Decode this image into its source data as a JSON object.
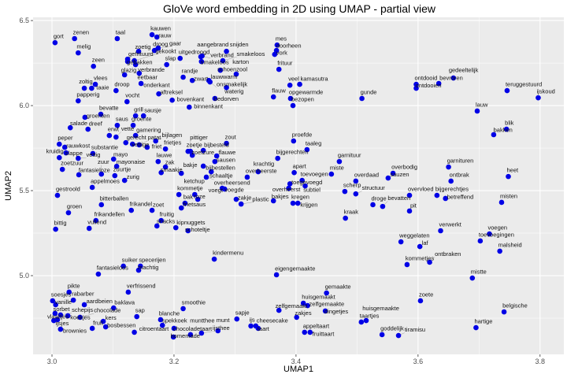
{
  "chart_data": {
    "type": "scatter",
    "title": "GloVe word embedding in 2D using UMAP - partial view",
    "xlabel": "UMAP1",
    "ylabel": "UMAP2",
    "xlim": [
      2.969,
      3.839
    ],
    "ylim": [
      4.537,
      6.519
    ],
    "x_ticks": [
      3.0,
      3.2,
      3.4,
      3.6,
      3.8
    ],
    "x_tick_labels": [
      "3.0",
      "3.2",
      "3.4",
      "3.6",
      "3.8"
    ],
    "y_ticks": [
      5.0,
      5.5,
      6.0,
      6.5
    ],
    "y_tick_labels": [
      "5.0",
      "5.5",
      "6.0",
      "6.5"
    ],
    "grid": true,
    "point_color": "#0000e6",
    "background": "#ebebeb",
    "points": [
      [
        "gort",
        3.005,
        6.37
      ],
      [
        "zenen",
        3.037,
        6.394
      ],
      [
        "taal",
        3.107,
        6.394
      ],
      [
        "kauwen",
        3.164,
        6.417
      ],
      [
        "rauw",
        3.172,
        6.403
      ],
      [
        "melig",
        3.043,
        6.31
      ],
      [
        "zeen",
        3.068,
        6.231
      ],
      [
        "droog",
        3.168,
        6.324
      ],
      [
        "gaar",
        3.174,
        6.338
      ],
      [
        "zoetig",
        3.142,
        6.319
      ],
      [
        "gefrituurd",
        3.124,
        6.273
      ],
      [
        "gebakken",
        3.124,
        6.259
      ],
      [
        "gekookt",
        3.135,
        6.264
      ],
      [
        "verbrande",
        3.137,
        6.241
      ],
      [
        "eetbaar",
        3.143,
        6.19
      ],
      [
        "glazig",
        3.119,
        6.181
      ],
      [
        "onderkant",
        3.146,
        6.13
      ],
      [
        "vlees",
        3.071,
        6.125
      ],
      [
        "zoltig",
        3.053,
        6.102
      ],
      [
        "taaie",
        3.065,
        6.102
      ],
      [
        "droop",
        3.105,
        6.088
      ],
      [
        "papperig",
        3.043,
        6.028
      ],
      [
        "vocht",
        3.123,
        6.023
      ],
      [
        "uitgedroogd",
        3.21,
        6.278
      ],
      [
        "slap",
        3.188,
        6.241
      ],
      [
        "randje",
        3.215,
        6.167
      ],
      [
        "zwart",
        3.23,
        6.148
      ],
      [
        "aangebrand",
        3.244,
        6.287
      ],
      [
        "verbrand",
        3.246,
        6.292
      ],
      [
        "smakeloos",
        3.245,
        6.259
      ],
      [
        "smakeloos",
        3.28,
        6.264
      ],
      [
        "snijden",
        3.286,
        6.319
      ],
      [
        "schoenzool",
        3.276,
        6.208
      ],
      [
        "karton",
        3.302,
        6.185
      ],
      [
        "lauwwarm",
        3.257,
        6.148
      ],
      [
        "onsmakelijk",
        3.259,
        6.139
      ],
      [
        "waterig",
        3.286,
        6.106
      ],
      [
        "aftreksel",
        3.175,
        6.069
      ],
      [
        "bovenkant",
        3.197,
        6.032
      ],
      [
        "bedorven",
        3.267,
        6.042
      ],
      [
        "binnenkant",
        3.225,
        5.991
      ],
      [
        "mes",
        3.369,
        6.356
      ],
      [
        "doorheen",
        3.368,
        6.324
      ],
      [
        "vork",
        3.365,
        6.301
      ],
      [
        "frituur",
        3.372,
        6.213
      ],
      [
        "veel",
        3.39,
        6.12
      ],
      [
        "kamasutra",
        3.406,
        6.125
      ],
      [
        "flauw",
        3.363,
        6.051
      ],
      [
        "opgewarmde",
        3.391,
        6.042
      ],
      [
        "bezopen",
        3.395,
        6.0
      ],
      [
        "gunde",
        3.508,
        6.042
      ],
      [
        "ontdooid",
        3.597,
        6.125
      ],
      [
        "ontdooien",
        3.597,
        6.102
      ],
      [
        "bevroren",
        3.634,
        6.13
      ],
      [
        "gedeeltelijk",
        3.658,
        6.162
      ],
      [
        "teruggestuurd",
        3.746,
        6.088
      ],
      [
        "ijskoud",
        3.797,
        6.046
      ],
      [
        "lauw",
        3.697,
        5.968
      ],
      [
        "bevatte",
        3.08,
        5.949
      ],
      [
        "groenten",
        3.054,
        5.931
      ],
      [
        "grill",
        3.137,
        5.94
      ],
      [
        "sausje",
        3.15,
        5.94
      ],
      [
        "salade",
        3.03,
        5.87
      ],
      [
        "dreef",
        3.059,
        5.861
      ],
      [
        "saus",
        3.107,
        5.884
      ],
      [
        "groente",
        3.133,
        5.884
      ],
      [
        "erwt",
        3.094,
        5.824
      ],
      [
        "vette",
        3.105,
        5.815
      ],
      [
        "gamering",
        3.137,
        5.824
      ],
      [
        "gerecht",
        3.121,
        5.782
      ],
      [
        "vettige",
        3.132,
        5.773
      ],
      [
        "patat",
        3.143,
        5.769
      ],
      [
        "friet",
        3.156,
        5.755
      ],
      [
        "bijlagen",
        3.17,
        5.792
      ],
      [
        "frietjes",
        3.186,
        5.745
      ],
      [
        "peper",
        3.012,
        5.773
      ],
      [
        "rauwkost",
        3.021,
        5.755
      ],
      [
        "slappe",
        3.023,
        5.722
      ],
      [
        "kruidig",
        3.012,
        5.694
      ],
      [
        "vettig",
        3.043,
        5.69
      ],
      [
        "substantie",
        3.067,
        5.718
      ],
      [
        "mayo",
        3.101,
        5.685
      ],
      [
        "lauwe",
        3.174,
        5.671
      ],
      [
        "zak",
        3.186,
        5.639
      ],
      [
        "smaakje",
        3.179,
        5.606
      ],
      [
        "zoetzuur",
        3.017,
        5.625
      ],
      [
        "mayonaise",
        3.106,
        5.643
      ],
      [
        "fantasieloze",
        3.044,
        5.593
      ],
      [
        "zuur",
        3.081,
        5.597
      ],
      [
        "zuurtje",
        3.103,
        5.588
      ],
      [
        "zurig",
        3.119,
        5.56
      ],
      [
        "appelmoes",
        3.066,
        5.519
      ],
      [
        "gestroold",
        3.009,
        5.472
      ],
      [
        "bakje",
        3.212,
        5.602
      ],
      [
        "zout",
        3.286,
        5.778
      ],
      [
        "zoetje",
        3.223,
        5.731
      ],
      [
        "pittiger",
        3.227,
        5.731
      ],
      [
        "zoetzure",
        3.23,
        5.708
      ],
      [
        "bijbesteld",
        3.248,
        5.736
      ],
      [
        "flauwe",
        3.27,
        5.704
      ],
      [
        "sausen",
        3.267,
        5.671
      ],
      [
        "bijbestellen",
        3.248,
        5.644
      ],
      [
        "schaaltje",
        3.261,
        5.611
      ],
      [
        "overheersend",
        3.253,
        5.579
      ],
      [
        "overheerste",
        3.32,
        5.579
      ],
      [
        "krachtig",
        3.338,
        5.611
      ],
      [
        "proefde",
        3.396,
        5.792
      ],
      [
        "taaleg",
        3.418,
        5.741
      ],
      [
        "bijgerechten",
        3.37,
        5.69
      ],
      [
        "apart",
        3.397,
        5.606
      ],
      [
        "toevoegen",
        3.41,
        5.56
      ],
      [
        "toegevoegd",
        3.39,
        5.54
      ],
      [
        "subtiel",
        3.415,
        5.528
      ],
      [
        "overheerst",
        3.388,
        5.514
      ],
      [
        "miste",
        3.458,
        5.597
      ],
      [
        "voegde",
        3.279,
        5.514
      ],
      [
        "voegt",
        3.283,
        5.509
      ],
      [
        "kommetje",
        3.208,
        5.477
      ],
      [
        "ketchup",
        3.234,
        5.477
      ],
      [
        "roze",
        3.239,
        5.449
      ],
      [
        "bak",
        3.218,
        5.426
      ],
      [
        "frietsaus",
        3.212,
        5.398
      ],
      [
        "zakje",
        3.302,
        5.449
      ],
      [
        "plastic",
        3.31,
        5.421
      ],
      [
        "bakjes",
        3.363,
        5.44
      ],
      [
        "kregen",
        3.395,
        5.426
      ],
      [
        "krijgen",
        3.403,
        5.426
      ],
      [
        "blik",
        3.745,
        5.861
      ],
      [
        "bakken",
        3.724,
        5.829
      ],
      [
        "garnituur",
        3.471,
        5.671
      ],
      [
        "garnituren",
        3.65,
        5.639
      ],
      [
        "overbodig",
        3.559,
        5.602
      ],
      [
        "sauzen",
        3.551,
        5.574
      ],
      [
        "overdaad",
        3.498,
        5.556
      ],
      [
        "ontbrak",
        3.654,
        5.556
      ],
      [
        "heet",
        3.748,
        5.583
      ],
      [
        "scherp",
        3.48,
        5.495
      ],
      [
        "structuur",
        3.498,
        5.481
      ],
      [
        "overvloed",
        3.586,
        5.472
      ],
      [
        "bijgerechtjes",
        3.631,
        5.472
      ],
      [
        "betreffend",
        3.645,
        5.454
      ],
      [
        "misten",
        3.737,
        5.431
      ],
      [
        "droge",
        3.526,
        5.417
      ],
      [
        "bevatten",
        3.542,
        5.407
      ],
      [
        "pit",
        3.586,
        5.38
      ],
      [
        "kraak",
        3.481,
        5.338
      ],
      [
        "verwerkt",
        3.637,
        5.264
      ],
      [
        "bitterballen",
        3.081,
        5.417
      ],
      [
        "frikandel",
        3.13,
        5.384
      ],
      [
        "zoet",
        3.164,
        5.384
      ],
      [
        "groen",
        3.027,
        5.37
      ],
      [
        "frikandellen",
        3.072,
        5.324
      ],
      [
        "fruitig",
        3.179,
        5.324
      ],
      [
        "snacks",
        3.172,
        5.292
      ],
      [
        "kipnuggets",
        3.203,
        5.282
      ],
      [
        "schoteltje",
        3.223,
        5.264
      ],
      [
        "bittig",
        3.006,
        5.273
      ],
      [
        "vullend",
        3.061,
        5.278
      ],
      [
        "kindermenu",
        3.266,
        5.097
      ],
      [
        "suiker",
        3.117,
        5.056
      ],
      [
        "specerijen",
        3.145,
        5.056
      ],
      [
        "machtig",
        3.142,
        5.032
      ],
      [
        "fantasieloos",
        3.076,
        5.009
      ],
      [
        "pikte",
        3.028,
        4.903
      ],
      [
        "rabarber",
        3.035,
        4.856
      ],
      [
        "soesjes",
        3.001,
        4.852
      ],
      [
        "vanille",
        3.006,
        4.829
      ],
      [
        "aardbeien",
        3.053,
        4.829
      ],
      [
        "baklava",
        3.101,
        4.81
      ],
      [
        "verfrissend",
        3.125,
        4.903
      ],
      [
        "sorbet",
        3.005,
        4.778
      ],
      [
        "schepijs",
        3.014,
        4.769
      ],
      [
        "koekjes",
        3.026,
        4.764
      ],
      [
        "chocolade",
        3.046,
        4.755
      ],
      [
        "vlaaitjes",
        3.003,
        4.736
      ],
      [
        "ijsjes",
        3.009,
        4.741
      ],
      [
        "brownies",
        3.014,
        4.685
      ],
      [
        "fruit",
        3.066,
        4.69
      ],
      [
        "kers",
        3.084,
        4.731
      ],
      [
        "bosbessen",
        3.088,
        4.699
      ],
      [
        "sap",
        3.139,
        4.759
      ],
      [
        "blanche",
        3.178,
        4.741
      ],
      [
        "spekkoek",
        3.181,
        4.708
      ],
      [
        "citroentaart",
        3.135,
        4.667
      ],
      [
        "smoothie",
        3.215,
        4.806
      ],
      [
        "chocoladetaart",
        3.2,
        4.69
      ],
      [
        "homemade",
        3.199,
        4.639
      ],
      [
        "muntthee",
        3.227,
        4.653
      ],
      [
        "ijsthee",
        3.245,
        4.662
      ],
      [
        "munt",
        3.272,
        4.676
      ],
      [
        "eigengemaakte",
        3.368,
        5.005
      ],
      [
        "gemaakte",
        3.45,
        4.898
      ],
      [
        "huisgemaakt",
        3.412,
        4.838
      ],
      [
        "zelfgemaakte",
        3.419,
        4.824
      ],
      [
        "zelfgemaakt",
        3.372,
        4.796
      ],
      [
        "dingetjes",
        3.448,
        4.792
      ],
      [
        "zakjes",
        3.401,
        4.755
      ],
      [
        "sapje",
        3.303,
        4.745
      ],
      [
        "ijs",
        3.326,
        4.704
      ],
      [
        "cheesecake",
        3.334,
        4.704
      ],
      [
        "taart",
        3.338,
        4.69
      ],
      [
        "appeltaart",
        3.414,
        4.667
      ],
      [
        "fruittaart",
        3.423,
        4.667
      ],
      [
        "taartjes",
        3.507,
        4.727
      ],
      [
        "huisgemaakte",
        3.515,
        4.736
      ],
      [
        "goddelijk",
        3.541,
        4.653
      ],
      [
        "tiramisu",
        3.568,
        4.648
      ],
      [
        "zoete",
        3.604,
        4.852
      ],
      [
        "voegen",
        3.717,
        5.245
      ],
      [
        "toevoegingen",
        3.702,
        5.204
      ],
      [
        "weggelaten",
        3.572,
        5.199
      ],
      [
        "laf",
        3.603,
        5.171
      ],
      [
        "malsheid",
        3.734,
        5.144
      ],
      [
        "kommetjes",
        3.582,
        5.065
      ],
      [
        "ontbraken",
        3.619,
        5.079
      ],
      [
        "mistte",
        3.689,
        4.986
      ],
      [
        "belgische",
        3.741,
        4.787
      ],
      [
        "hartige",
        3.695,
        4.694
      ]
    ]
  }
}
